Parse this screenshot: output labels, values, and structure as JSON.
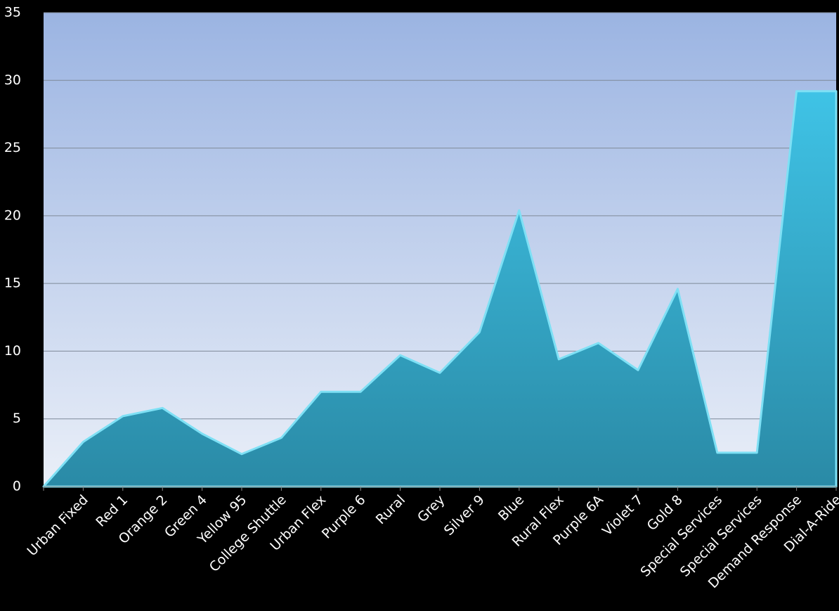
{
  "chart_data": {
    "type": "area",
    "categories": [
      null,
      "Urban Fixed",
      "Red 1",
      "Orange 2",
      "Green 4",
      "Yellow 95",
      "College Shuttle",
      "Urban Flex",
      "Purple 6",
      "Rural",
      "Grey",
      "Silver 9",
      "Blue",
      "Rural Flex",
      "Purple 6A",
      "Violet 7",
      "Gold 8",
      "Special Services",
      "Special Services",
      "Demand Response",
      "Dial-A-Ride"
    ],
    "values": [
      0,
      3.3,
      5.2,
      5.8,
      3.9,
      2.4,
      3.6,
      7.0,
      7.0,
      9.7,
      8.4,
      11.4,
      20.4,
      9.4,
      10.6,
      8.6,
      14.6,
      2.5,
      2.5,
      29.2,
      29.2
    ],
    "color": "#35aacb",
    "ylim": [
      0,
      35
    ],
    "yticks": [
      0,
      5,
      10,
      15,
      20,
      25,
      30,
      35
    ],
    "grid": true
  }
}
